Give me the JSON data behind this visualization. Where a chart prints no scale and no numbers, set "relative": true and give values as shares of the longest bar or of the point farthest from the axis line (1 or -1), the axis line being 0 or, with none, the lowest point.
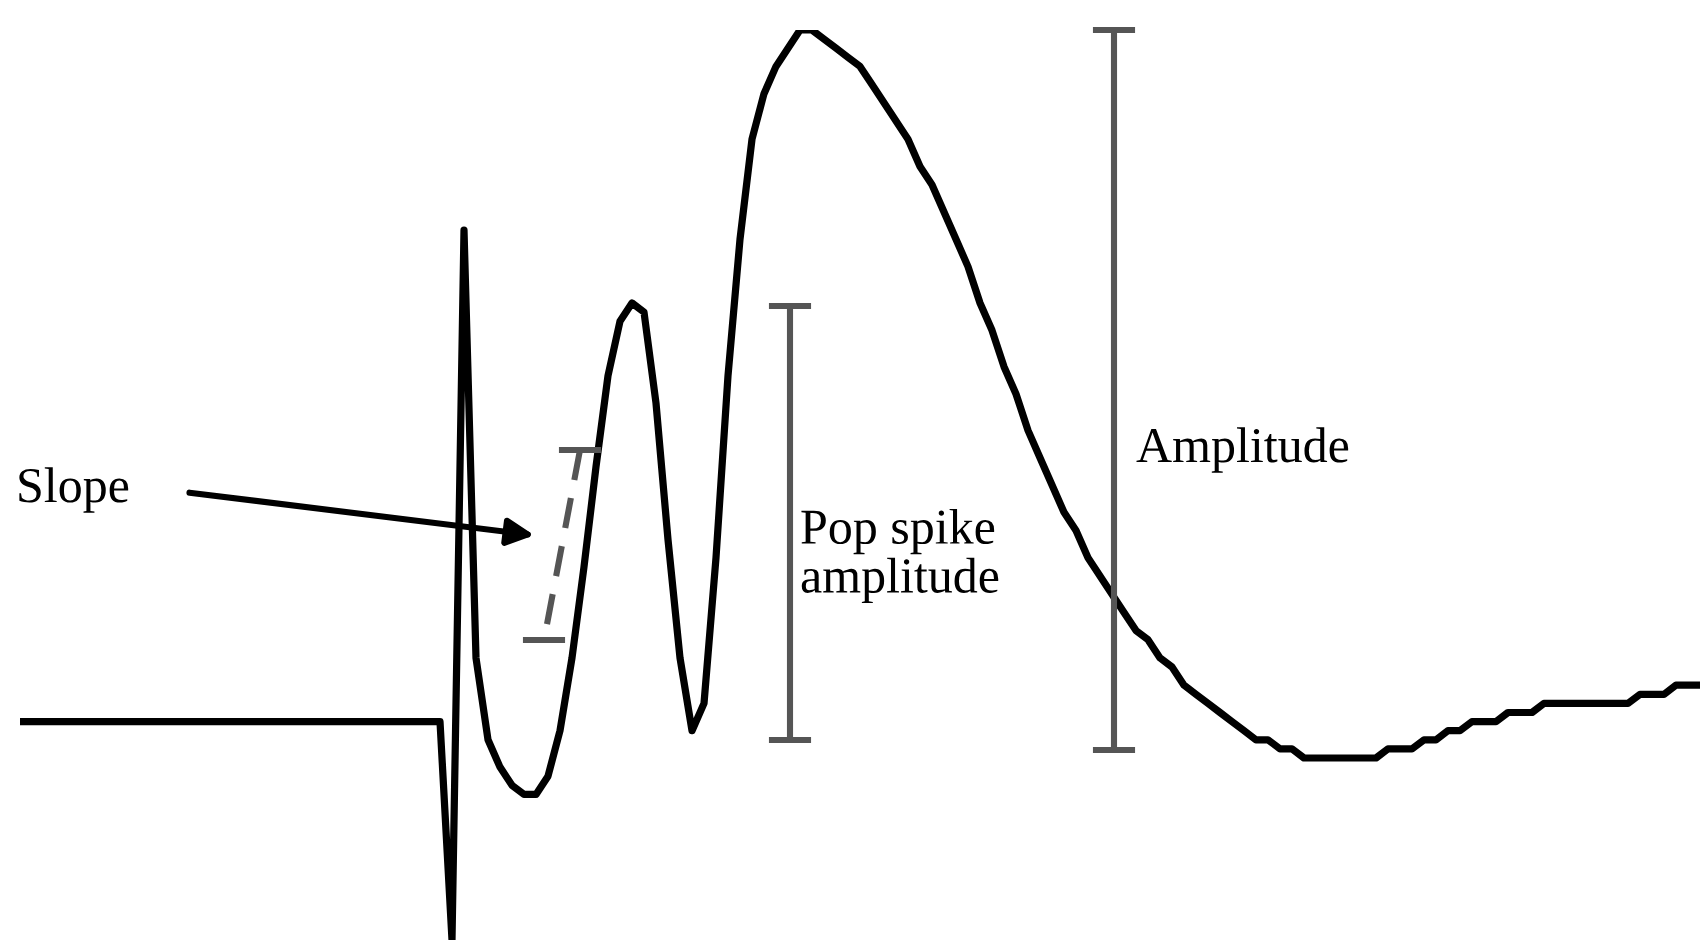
{
  "chart_data": {
    "type": "line",
    "relative": true,
    "categories": [
      null,
      null,
      null,
      null,
      null,
      null,
      null,
      null,
      null,
      null,
      null,
      null,
      null,
      null,
      null,
      null,
      null,
      null,
      null,
      null,
      null,
      null,
      null,
      null,
      null,
      null,
      null,
      null,
      null,
      null,
      null,
      null,
      null,
      null,
      null,
      null,
      null,
      null,
      null,
      null,
      null,
      null,
      null,
      null,
      null,
      null,
      null,
      null,
      null,
      null,
      null,
      null,
      null,
      null,
      null,
      null,
      null,
      null,
      null,
      null,
      null,
      null,
      null,
      null,
      null,
      null,
      null,
      null,
      null,
      null,
      null,
      null,
      null,
      null,
      null,
      null,
      null,
      null,
      null,
      null,
      null,
      null,
      null,
      null,
      null,
      null,
      null,
      null,
      null,
      null,
      null,
      null,
      null,
      null,
      null,
      null,
      null,
      null,
      null,
      null,
      null,
      null,
      null,
      null,
      null,
      null,
      null,
      null,
      null,
      null,
      null,
      null,
      null,
      null,
      null,
      null,
      null,
      null,
      null,
      null,
      null,
      null,
      null,
      null,
      null,
      null,
      null,
      null,
      null,
      null,
      null,
      null,
      null,
      null,
      null,
      null,
      null,
      null,
      null,
      null,
      null
    ],
    "series": [
      {
        "color": "#000000",
        "values": [
          0.24,
          0.24,
          0.24,
          0.24,
          0.24,
          0.24,
          0.24,
          0.24,
          0.24,
          0.24,
          0.24,
          0.24,
          0.24,
          0.24,
          0.24,
          0.24,
          0.24,
          0.24,
          0.24,
          0.24,
          0.24,
          0.24,
          0.24,
          0.24,
          0.24,
          0.24,
          0.24,
          0.24,
          0.24,
          0.24,
          0.24,
          0.24,
          0.24,
          0.24,
          0.24,
          0.24,
          0,
          0.78,
          0.31,
          0.22,
          0.19,
          0.17,
          0.16,
          0.16,
          0.18,
          0.23,
          0.31,
          0.41,
          0.52,
          0.62,
          0.68,
          0.7,
          0.69,
          0.59,
          0.44,
          0.31,
          0.23,
          0.26,
          0.42,
          0.62,
          0.77,
          0.88,
          0.93,
          0.96,
          0.98,
          1.0,
          1.0,
          0.99,
          0.98,
          0.97,
          0.96,
          0.94,
          0.92,
          0.9,
          0.88,
          0.85,
          0.83,
          0.8,
          0.77,
          0.74,
          0.7,
          0.67,
          0.63,
          0.6,
          0.56,
          0.53,
          0.5,
          0.47,
          0.45,
          0.42,
          0.4,
          0.38,
          0.36,
          0.34,
          0.33,
          0.31,
          0.3,
          0.28,
          0.27,
          0.26,
          0.25,
          0.24,
          0.23,
          0.22,
          0.22,
          0.21,
          0.21,
          0.2,
          0.2,
          0.2,
          0.2,
          0.2,
          0.2,
          0.2,
          0.21,
          0.21,
          0.21,
          0.22,
          0.22,
          0.23,
          0.23,
          0.24,
          0.24,
          0.24,
          0.25,
          0.25,
          0.25,
          0.26,
          0.26,
          0.26,
          0.26,
          0.26,
          0.26,
          0.26,
          0.26,
          0.27,
          0.27,
          0.27,
          0.28,
          0.28,
          0.28
        ]
      }
    ],
    "annotations": [
      "Slope",
      "Pop spike\namplitude",
      "Amplitude"
    ]
  }
}
